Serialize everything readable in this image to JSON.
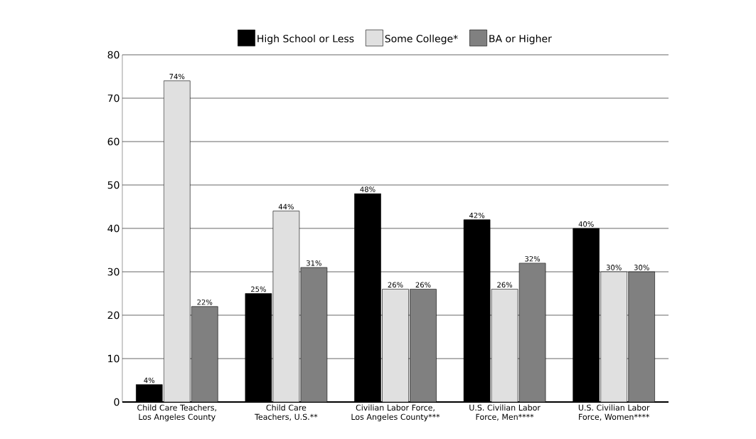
{
  "chart_data": {
    "type": "bar",
    "categories": [
      "Child Care Teachers, Los Angeles County",
      "Child Care Teachers, U.S.**",
      "Civilian Labor Force, Los Angeles County***",
      "U.S. Civilian Labor Force, Men****",
      "U.S. Civilian Labor Force, Women****"
    ],
    "series": [
      {
        "name": "High School or Less",
        "color": "#000000",
        "values": [
          4,
          25,
          48,
          42,
          40
        ],
        "value_labels": [
          "4%",
          "25%",
          "48%",
          "42%",
          "40%"
        ]
      },
      {
        "name": "Some College*",
        "color": "#e0e0e0",
        "values": [
          74,
          44,
          26,
          26,
          30
        ],
        "value_labels": [
          "74%",
          "44%",
          "26%",
          "26%",
          "30%"
        ]
      },
      {
        "name": "BA or Higher",
        "color": "#808080",
        "values": [
          22,
          31,
          26,
          32,
          30
        ],
        "value_labels": [
          "22%",
          "31%",
          "26%",
          "32%",
          "30%"
        ]
      }
    ],
    "ylim": [
      0,
      80
    ],
    "yticks": [
      0,
      10,
      20,
      30,
      40,
      50,
      60,
      70,
      80
    ],
    "grid": "y",
    "legend": "top"
  }
}
